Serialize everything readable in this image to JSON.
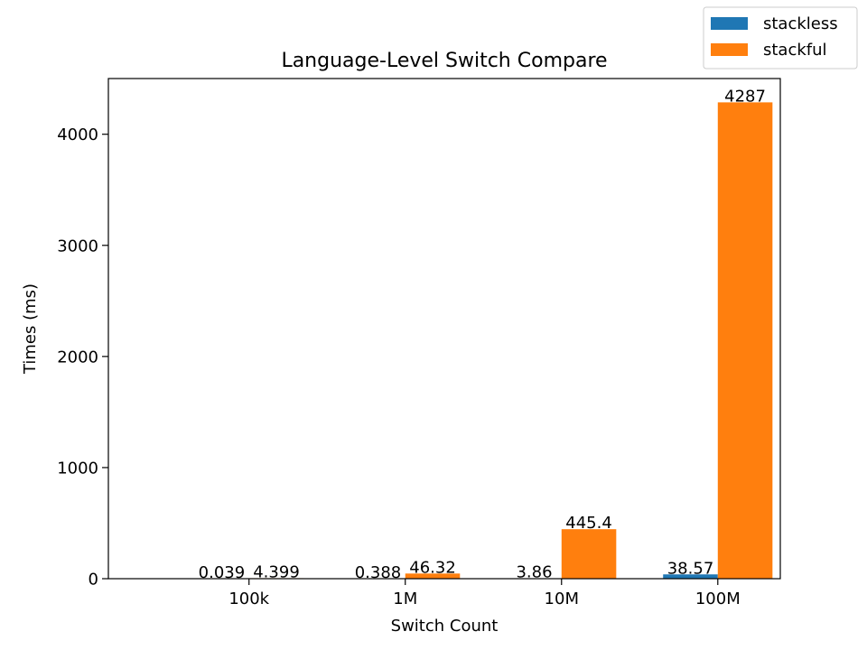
{
  "chart_data": {
    "type": "bar",
    "title": "Language-Level Switch Compare",
    "xlabel": "Switch Count",
    "ylabel": "Times (ms)",
    "categories": [
      "100k",
      "1M",
      "10M",
      "100M"
    ],
    "series": [
      {
        "name": "stackless",
        "color": "#1f77b4",
        "values": [
          0.039,
          0.388,
          3.86,
          38.57
        ],
        "labels": [
          "0.039",
          "0.388",
          "3.86",
          "38.57"
        ]
      },
      {
        "name": "stackful",
        "color": "#ff7f0e",
        "values": [
          4.399,
          46.32,
          445.4,
          4287
        ],
        "labels": [
          "4.399",
          "46.32",
          "445.4",
          "4287"
        ]
      }
    ],
    "ylim": [
      0,
      4501.35
    ],
    "yticks": [
      0,
      1000,
      2000,
      3000,
      4000
    ],
    "grid": false,
    "legend_position": "top-right, outside plot"
  }
}
